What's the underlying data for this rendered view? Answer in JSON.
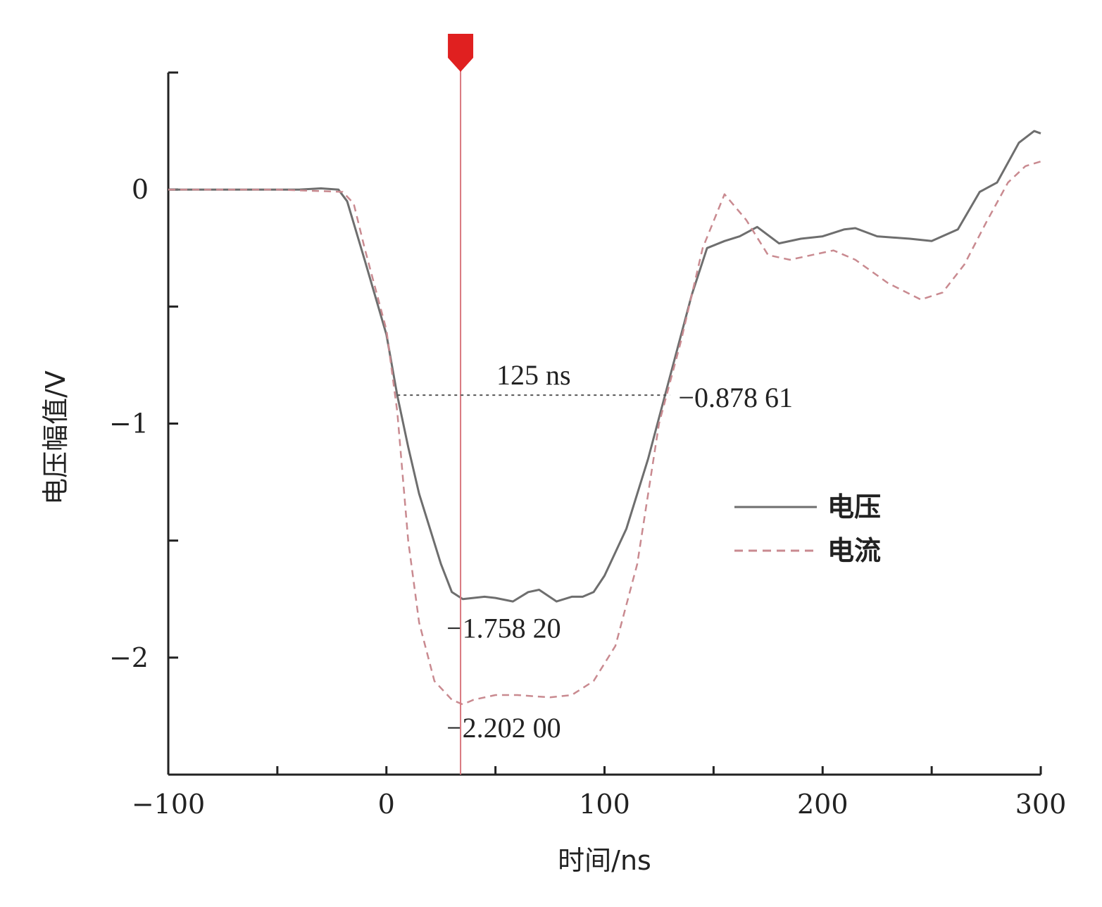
{
  "chart_data": {
    "type": "line",
    "xlabel": "时间/ns",
    "ylabel": "电压幅值/V",
    "xlim": [
      -100,
      300
    ],
    "ylim": [
      -2.5,
      0.5
    ],
    "x_ticks": [
      -100,
      0,
      100,
      200,
      300
    ],
    "x_tick_labels": [
      "−100",
      "0",
      "100",
      "200",
      "300"
    ],
    "y_ticks": [
      0,
      -1,
      -2
    ],
    "y_tick_labels": [
      "0",
      "−1",
      "−2"
    ],
    "x_minor_ticks": [
      -50,
      50,
      150,
      250
    ],
    "y_minor_ticks": [
      0.5,
      -0.5,
      -1.5,
      -2.5
    ],
    "grid": false,
    "legend_position": "right-middle",
    "series": [
      {
        "name": "电压",
        "style": "solid",
        "color": "#6e6e6e",
        "points": [
          [
            -100,
            0
          ],
          [
            -80,
            0
          ],
          [
            -60,
            0
          ],
          [
            -40,
            0
          ],
          [
            -30,
            0.005
          ],
          [
            -22,
            0
          ],
          [
            -18,
            -0.05
          ],
          [
            -10,
            -0.3
          ],
          [
            0,
            -0.62
          ],
          [
            5,
            -0.88
          ],
          [
            10,
            -1.1
          ],
          [
            15,
            -1.3
          ],
          [
            20,
            -1.45
          ],
          [
            25,
            -1.6
          ],
          [
            30,
            -1.72
          ],
          [
            35,
            -1.75
          ],
          [
            45,
            -1.74
          ],
          [
            50,
            -1.745
          ],
          [
            58,
            -1.76
          ],
          [
            65,
            -1.72
          ],
          [
            70,
            -1.71
          ],
          [
            78,
            -1.76
          ],
          [
            85,
            -1.74
          ],
          [
            90,
            -1.74
          ],
          [
            95,
            -1.72
          ],
          [
            100,
            -1.65
          ],
          [
            110,
            -1.45
          ],
          [
            120,
            -1.15
          ],
          [
            130,
            -0.8
          ],
          [
            140,
            -0.45
          ],
          [
            147,
            -0.25
          ],
          [
            155,
            -0.22
          ],
          [
            162,
            -0.2
          ],
          [
            170,
            -0.16
          ],
          [
            180,
            -0.23
          ],
          [
            190,
            -0.21
          ],
          [
            200,
            -0.2
          ],
          [
            210,
            -0.17
          ],
          [
            215,
            -0.165
          ],
          [
            225,
            -0.2
          ],
          [
            240,
            -0.21
          ],
          [
            250,
            -0.22
          ],
          [
            262,
            -0.17
          ],
          [
            272,
            -0.01
          ],
          [
            280,
            0.03
          ],
          [
            290,
            0.2
          ],
          [
            297,
            0.25
          ],
          [
            300,
            0.24
          ]
        ]
      },
      {
        "name": "电流",
        "style": "dashed",
        "color": "#c98a90",
        "points": [
          [
            -100,
            0
          ],
          [
            -50,
            0
          ],
          [
            -20,
            -0.01
          ],
          [
            -15,
            -0.06
          ],
          [
            -10,
            -0.25
          ],
          [
            0,
            -0.6
          ],
          [
            5,
            -0.95
          ],
          [
            10,
            -1.5
          ],
          [
            15,
            -1.85
          ],
          [
            22,
            -2.1
          ],
          [
            30,
            -2.18
          ],
          [
            35,
            -2.2
          ],
          [
            40,
            -2.18
          ],
          [
            50,
            -2.16
          ],
          [
            60,
            -2.16
          ],
          [
            75,
            -2.17
          ],
          [
            85,
            -2.16
          ],
          [
            95,
            -2.1
          ],
          [
            105,
            -1.95
          ],
          [
            115,
            -1.6
          ],
          [
            125,
            -1.0
          ],
          [
            135,
            -0.65
          ],
          [
            145,
            -0.25
          ],
          [
            155,
            -0.02
          ],
          [
            165,
            -0.13
          ],
          [
            175,
            -0.28
          ],
          [
            185,
            -0.3
          ],
          [
            195,
            -0.28
          ],
          [
            205,
            -0.26
          ],
          [
            215,
            -0.3
          ],
          [
            230,
            -0.4
          ],
          [
            245,
            -0.47
          ],
          [
            255,
            -0.44
          ],
          [
            265,
            -0.32
          ],
          [
            275,
            -0.14
          ],
          [
            285,
            0.03
          ],
          [
            293,
            0.1
          ],
          [
            300,
            0.12
          ]
        ]
      }
    ],
    "annotations": {
      "marker_x": 34,
      "width_label": "125 ns",
      "width_level": -0.87861,
      "width_start_x": 5,
      "width_end_x": 130,
      "level_label": "−0.878 61",
      "voltage_min_label": "−1.758 20",
      "voltage_min_value": -1.7582,
      "current_min_label": "−2.202 00",
      "current_min_value": -2.202
    }
  }
}
